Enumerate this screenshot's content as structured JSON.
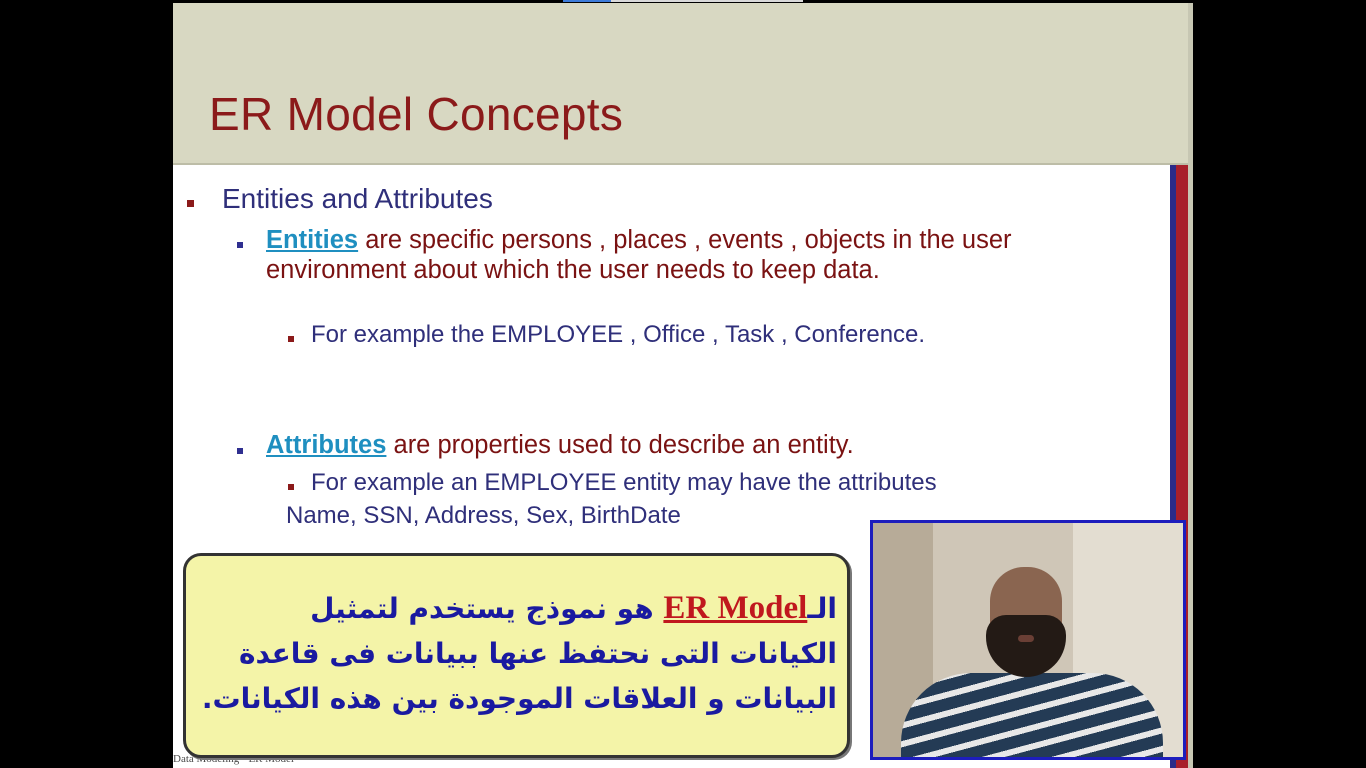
{
  "slide": {
    "title": "ER Model Concepts",
    "l1_bullet": "Entities and Attributes",
    "entities": {
      "term": "Entities",
      "text": " are specific persons , places , events , objects in the user environment about which the user needs to keep data.",
      "example": "For example the EMPLOYEE , Office , Task , Conference."
    },
    "attributes": {
      "term": "Attributes",
      "text": " are properties used to describe an entity.",
      "example_line1": "For example an EMPLOYEE entity may have the attributes",
      "example_line2": "Name, SSN, Address, Sex, BirthDate"
    },
    "footer": "Data Modeling - ER Model"
  },
  "callout": {
    "prefix": "الـ",
    "term": "ER Model",
    "text": " هو نموذج يستخدم لتمثيل الكيانات التى نحتفظ عنها ببيانات فى قاعدة البيانات و العلاقات الموجودة بين هذه الكيانات."
  },
  "colors": {
    "title": "#8b1a1a",
    "bullet_text": "#2f2f7a",
    "body_text": "#7a1212",
    "term_link": "#1f8fc0",
    "callout_bg": "#f4f4a8",
    "callout_text": "#1a1aa0",
    "callout_term": "#c0181e",
    "webcam_border": "#1d1dbd"
  }
}
